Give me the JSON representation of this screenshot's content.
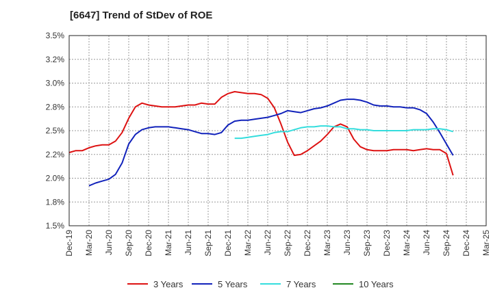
{
  "chart_data": {
    "type": "line",
    "title": "[6647]  Trend of StDev of ROE",
    "xlabel": "",
    "ylabel": "",
    "ylim": [
      1.5,
      3.5
    ],
    "y_ticks": [
      "3.5%",
      "3.2%",
      "3.0%",
      "2.8%",
      "2.5%",
      "2.2%",
      "2.0%",
      "1.8%",
      "1.5%"
    ],
    "x_ticks": [
      "Dec-19",
      "Mar-20",
      "Jun-20",
      "Sep-20",
      "Dec-20",
      "Mar-21",
      "Jun-21",
      "Sep-21",
      "Dec-21",
      "Mar-22",
      "Jun-22",
      "Sep-22",
      "Dec-22",
      "Mar-23",
      "Jun-23",
      "Sep-23",
      "Dec-23",
      "Mar-24",
      "Jun-24",
      "Sep-24",
      "Dec-24",
      "Mar-25"
    ],
    "grid": true,
    "legend_position": "bottom",
    "series": [
      {
        "name": "3 Years",
        "color": "#dd1111",
        "values": [
          2.27,
          2.29,
          2.29,
          2.32,
          2.34,
          2.35,
          2.35,
          2.39,
          2.48,
          2.63,
          2.75,
          2.79,
          2.77,
          2.76,
          2.75,
          2.75,
          2.75,
          2.76,
          2.77,
          2.77,
          2.79,
          2.78,
          2.78,
          2.85,
          2.89,
          2.91,
          2.9,
          2.89,
          2.89,
          2.88,
          2.84,
          2.74,
          2.57,
          2.38,
          2.24,
          2.25,
          2.29,
          2.34,
          2.39,
          2.46,
          2.54,
          2.57,
          2.54,
          2.41,
          2.33,
          2.3,
          2.29,
          2.29,
          2.29,
          2.3,
          2.3,
          2.3,
          2.29,
          2.3,
          2.31,
          2.3,
          2.3,
          2.26,
          2.03
        ]
      },
      {
        "name": "5 Years",
        "color": "#1122bb",
        "values": [
          null,
          null,
          null,
          1.92,
          1.95,
          1.97,
          1.99,
          2.04,
          2.16,
          2.36,
          2.46,
          2.51,
          2.53,
          2.54,
          2.54,
          2.54,
          2.53,
          2.52,
          2.51,
          2.49,
          2.47,
          2.47,
          2.46,
          2.48,
          2.56,
          2.6,
          2.61,
          2.61,
          2.62,
          2.63,
          2.64,
          2.66,
          2.68,
          2.71,
          2.7,
          2.69,
          2.71,
          2.73,
          2.74,
          2.76,
          2.79,
          2.82,
          2.83,
          2.83,
          2.82,
          2.8,
          2.77,
          2.76,
          2.76,
          2.75,
          2.75,
          2.74,
          2.74,
          2.72,
          2.68,
          2.59,
          2.48,
          2.36,
          2.24
        ]
      },
      {
        "name": "7 Years",
        "color": "#33dddd",
        "values": [
          null,
          null,
          null,
          null,
          null,
          null,
          null,
          null,
          null,
          null,
          null,
          null,
          null,
          null,
          null,
          null,
          null,
          null,
          null,
          null,
          null,
          null,
          null,
          null,
          null,
          2.42,
          2.42,
          2.43,
          2.44,
          2.45,
          2.46,
          2.48,
          2.49,
          2.49,
          2.51,
          2.53,
          2.54,
          2.54,
          2.55,
          2.55,
          2.54,
          2.54,
          2.52,
          2.52,
          2.51,
          2.51,
          2.5,
          2.5,
          2.5,
          2.5,
          2.5,
          2.5,
          2.51,
          2.51,
          2.51,
          2.52,
          2.52,
          2.51,
          2.49
        ]
      },
      {
        "name": "10 Years",
        "color": "#228822",
        "values": []
      }
    ]
  }
}
